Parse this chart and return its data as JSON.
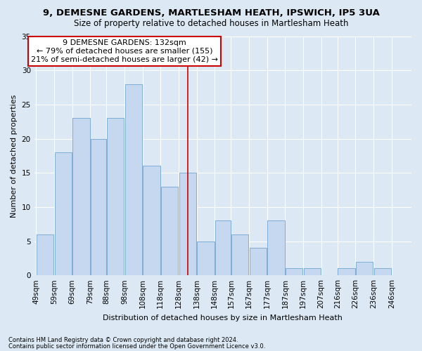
{
  "title1": "9, DEMESNE GARDENS, MARTLESHAM HEATH, IPSWICH, IP5 3UA",
  "title2": "Size of property relative to detached houses in Martlesham Heath",
  "xlabel": "Distribution of detached houses by size in Martlesham Heath",
  "ylabel": "Number of detached properties",
  "footnote1": "Contains HM Land Registry data © Crown copyright and database right 2024.",
  "footnote2": "Contains public sector information licensed under the Open Government Licence v3.0.",
  "annotation_line1": "9 DEMESNE GARDENS: 132sqm",
  "annotation_line2": "← 79% of detached houses are smaller (155)",
  "annotation_line3": "21% of semi-detached houses are larger (42) →",
  "bins": [
    49,
    59,
    69,
    79,
    88,
    98,
    108,
    118,
    128,
    138,
    148,
    157,
    167,
    177,
    187,
    197,
    207,
    216,
    226,
    236,
    246
  ],
  "bar_labels": [
    "49sqm",
    "59sqm",
    "69sqm",
    "79sqm",
    "88sqm",
    "98sqm",
    "108sqm",
    "118sqm",
    "128sqm",
    "138sqm",
    "148sqm",
    "157sqm",
    "167sqm",
    "177sqm",
    "187sqm",
    "197sqm",
    "207sqm",
    "216sqm",
    "226sqm",
    "236sqm",
    "246sqm"
  ],
  "values": [
    6,
    18,
    23,
    20,
    23,
    28,
    16,
    13,
    15,
    5,
    8,
    6,
    4,
    8,
    1,
    1,
    0,
    1,
    2,
    1,
    0
  ],
  "bar_color": "#c5d8ef",
  "bar_edge_color": "#7eadd4",
  "vline_x": 133,
  "vline_color": "#cc0000",
  "annotation_box_color": "#ffffff",
  "annotation_box_edge": "#cc0000",
  "grid_color": "#ffffff",
  "bg_color": "#dce9f5",
  "ylim": [
    0,
    35
  ],
  "yticks": [
    0,
    5,
    10,
    15,
    20,
    25,
    30,
    35
  ],
  "title_fontsize": 9.5,
  "subtitle_fontsize": 8.5,
  "axis_label_fontsize": 8,
  "tick_fontsize": 7.5,
  "annotation_fontsize": 8
}
